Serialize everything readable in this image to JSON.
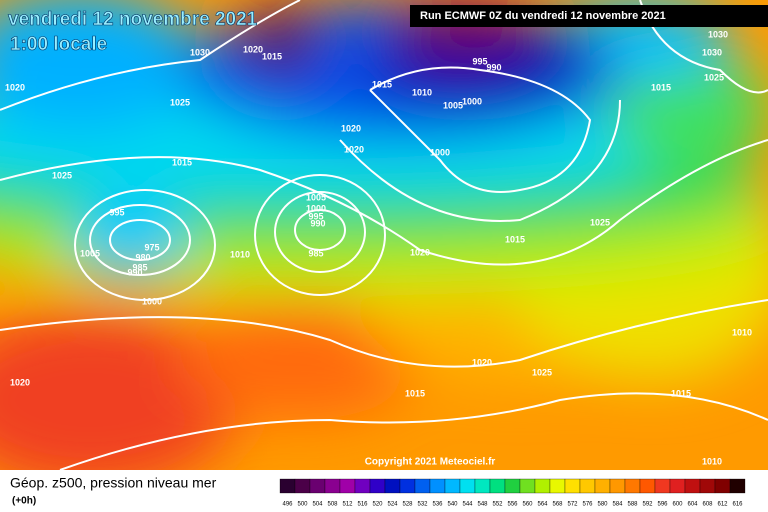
{
  "header": {
    "title": "vendredi 12 novembre 2021",
    "time": "1:00 locale",
    "run": "Run ECMWF 0Z du vendredi 12 novembre 2021"
  },
  "copyright": "Copyright 2021 Meteociel.fr",
  "legend": {
    "title": "Géop. z500, pression niveau mer",
    "step": "(+0h)",
    "labels": [
      496,
      500,
      504,
      508,
      512,
      516,
      520,
      524,
      528,
      532,
      536,
      540,
      544,
      548,
      552,
      556,
      560,
      564,
      568,
      572,
      576,
      580,
      584,
      588,
      592,
      596,
      600,
      604,
      608,
      612,
      616
    ],
    "colors": [
      "#2a0030",
      "#4b0048",
      "#6a0070",
      "#8a0090",
      "#a000a8",
      "#7000c0",
      "#3000c8",
      "#0010c0",
      "#0030e0",
      "#0060f0",
      "#0090ff",
      "#00b8ff",
      "#00e0f0",
      "#00e8c0",
      "#00e080",
      "#20d040",
      "#70e020",
      "#b0f000",
      "#e8f800",
      "#ffe000",
      "#ffc800",
      "#ffb000",
      "#ff9800",
      "#ff7800",
      "#ff5800",
      "#f03820",
      "#e02020",
      "#c01010",
      "#a00808",
      "#800000",
      "#200000"
    ]
  },
  "isobar_labels": [
    1030,
    1020,
    1015,
    1025,
    1020,
    1015,
    1025,
    995,
    975,
    980,
    985,
    990,
    1005,
    1000,
    1010,
    1005,
    1000,
    995,
    990,
    985,
    1015,
    1010,
    1020,
    1020,
    995,
    990,
    1005,
    1000,
    1000,
    1015,
    1025,
    1020,
    1030,
    1030,
    1015,
    1025,
    1010,
    1020,
    1025,
    1015,
    1015,
    1010,
    1020
  ]
}
